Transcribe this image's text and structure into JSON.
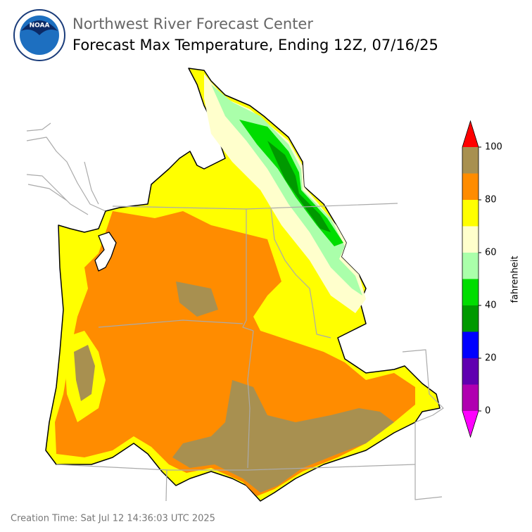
{
  "header": {
    "title": "Northwest River Forecast Center",
    "subtitle": "Forecast Max Temperature, Ending 12Z, 07/16/25",
    "logo_text": "NOAA"
  },
  "colorbar": {
    "label": "fahrenheit",
    "lim": [
      0,
      100
    ],
    "bounds": [
      0,
      10,
      20,
      30,
      40,
      50,
      60,
      70,
      80,
      90,
      100
    ],
    "colors": [
      "#b000b0",
      "#6000b0",
      "#0000ff",
      "#009900",
      "#00dd00",
      "#aaffaa",
      "#ffffcc",
      "#ffff00",
      "#ff8c00",
      "#a89050"
    ],
    "under_color": "#ff00ff",
    "over_color": "#ff0000",
    "ticks": [
      0,
      20,
      40,
      60,
      80,
      100
    ]
  },
  "footer": {
    "creation_time": "Creation Time: Sat Jul 12 14:36:03 UTC 2025"
  }
}
